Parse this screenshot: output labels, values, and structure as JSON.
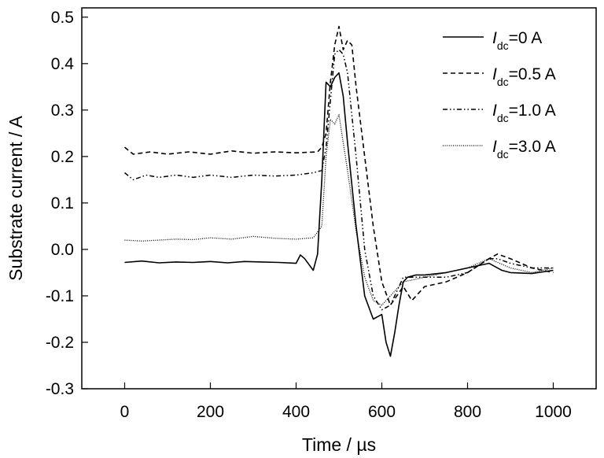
{
  "chart_data": {
    "type": "line",
    "title": "",
    "xlabel": "Time / µs",
    "ylabel": "Substrate current / A",
    "xlim": [
      -100,
      1100
    ],
    "ylim": [
      -0.3,
      0.52
    ],
    "xticks": [
      0,
      200,
      400,
      600,
      800,
      1000
    ],
    "yticks": [
      -0.3,
      -0.2,
      -0.1,
      0.0,
      0.1,
      0.2,
      0.3,
      0.4,
      0.5
    ],
    "xtick_labels": [
      "0",
      "200",
      "400",
      "600",
      "800",
      "1000"
    ],
    "ytick_labels": [
      "-0.3",
      "-0.2",
      "-0.1",
      "0.0",
      "0.1",
      "0.2",
      "0.3",
      "0.4",
      "0.5"
    ],
    "grid": false,
    "legend_position": "top-right",
    "series": [
      {
        "name": "I_dc=0 A",
        "legend": {
          "italic": "I",
          "sub": "dc",
          "rest": "=0 A"
        },
        "dash": "solid",
        "x": [
          0,
          40,
          80,
          120,
          160,
          200,
          240,
          280,
          320,
          360,
          400,
          410,
          420,
          440,
          450,
          460,
          470,
          480,
          490,
          500,
          510,
          520,
          540,
          560,
          580,
          600,
          610,
          620,
          630,
          640,
          650,
          660,
          680,
          700,
          750,
          800,
          850,
          880,
          900,
          950,
          1000
        ],
        "y": [
          -0.028,
          -0.025,
          -0.029,
          -0.027,
          -0.028,
          -0.026,
          -0.029,
          -0.026,
          -0.027,
          -0.028,
          -0.03,
          -0.012,
          -0.02,
          -0.045,
          -0.01,
          0.15,
          0.36,
          0.35,
          0.37,
          0.38,
          0.33,
          0.23,
          0.05,
          -0.1,
          -0.15,
          -0.14,
          -0.2,
          -0.23,
          -0.18,
          -0.12,
          -0.07,
          -0.06,
          -0.055,
          -0.055,
          -0.05,
          -0.04,
          -0.03,
          -0.045,
          -0.05,
          -0.052,
          -0.045
        ]
      },
      {
        "name": "I_dc=0.5 A",
        "legend": {
          "italic": "I",
          "sub": "dc",
          "rest": "=0.5 A"
        },
        "dash": "dashed",
        "x": [
          0,
          20,
          60,
          100,
          150,
          200,
          250,
          300,
          350,
          400,
          450,
          460,
          470,
          480,
          490,
          500,
          510,
          520,
          530,
          540,
          560,
          580,
          600,
          620,
          650,
          670,
          700,
          750,
          800,
          850,
          870,
          900,
          950,
          1000
        ],
        "y": [
          0.22,
          0.205,
          0.21,
          0.205,
          0.21,
          0.205,
          0.212,
          0.207,
          0.21,
          0.208,
          0.21,
          0.22,
          0.25,
          0.36,
          0.44,
          0.48,
          0.43,
          0.45,
          0.44,
          0.35,
          0.2,
          0.05,
          -0.07,
          -0.12,
          -0.08,
          -0.11,
          -0.08,
          -0.07,
          -0.05,
          -0.02,
          -0.01,
          -0.02,
          -0.04,
          -0.05
        ]
      },
      {
        "name": "I_dc=1.0 A",
        "legend": {
          "italic": "I",
          "sub": "dc",
          "rest": "=1.0 A"
        },
        "dash": "dashdotdot",
        "x": [
          0,
          20,
          50,
          80,
          120,
          160,
          200,
          250,
          300,
          350,
          400,
          440,
          460,
          470,
          480,
          490,
          500,
          510,
          520,
          540,
          560,
          580,
          600,
          620,
          650,
          700,
          750,
          800,
          850,
          870,
          900,
          950,
          1000
        ],
        "y": [
          0.165,
          0.15,
          0.16,
          0.155,
          0.16,
          0.155,
          0.16,
          0.155,
          0.16,
          0.158,
          0.16,
          0.165,
          0.17,
          0.22,
          0.32,
          0.42,
          0.43,
          0.42,
          0.38,
          0.2,
          0.0,
          -0.1,
          -0.13,
          -0.12,
          -0.06,
          -0.06,
          -0.06,
          -0.05,
          -0.02,
          -0.02,
          -0.03,
          -0.04,
          -0.04
        ]
      },
      {
        "name": "I_dc=3.0 A",
        "legend": {
          "italic": "I",
          "sub": "dc",
          "rest": "=3.0 A"
        },
        "dash": "dotted",
        "x": [
          0,
          40,
          80,
          120,
          160,
          200,
          250,
          300,
          350,
          400,
          440,
          460,
          470,
          480,
          490,
          500,
          510,
          520,
          540,
          560,
          580,
          600,
          620,
          650,
          700,
          750,
          800,
          850,
          900,
          950,
          1000
        ],
        "y": [
          0.02,
          0.018,
          0.02,
          0.022,
          0.021,
          0.025,
          0.022,
          0.028,
          0.024,
          0.022,
          0.025,
          0.05,
          0.2,
          0.28,
          0.27,
          0.29,
          0.23,
          0.17,
          0.04,
          -0.06,
          -0.11,
          -0.12,
          -0.1,
          -0.07,
          -0.06,
          -0.05,
          -0.04,
          -0.02,
          -0.04,
          -0.05,
          -0.04
        ]
      }
    ]
  }
}
